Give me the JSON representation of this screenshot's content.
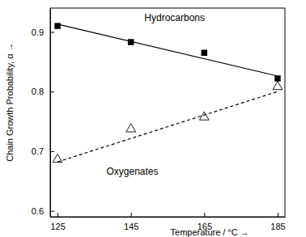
{
  "chart_data": {
    "type": "scatter",
    "x_label": "Temperature / °C →",
    "y_label": "Chain Growth Probability, α →",
    "xlim": [
      123,
      187
    ],
    "xticks": [
      125,
      145,
      165,
      185
    ],
    "ylim": [
      0.59,
      0.94
    ],
    "yticks": [
      0.6,
      0.7,
      0.8,
      0.9
    ],
    "grid": false,
    "series": [
      {
        "name": "Hydrocarbons",
        "type": "scatter",
        "marker": "square",
        "color": "#000000",
        "x": [
          125,
          145,
          165,
          185
        ],
        "values": [
          0.91,
          0.883,
          0.865,
          0.822
        ]
      },
      {
        "name": "Oxygenates",
        "type": "scatter",
        "marker": "triangle-open",
        "color": "#000000",
        "x": [
          125,
          145,
          165,
          185
        ],
        "values": [
          0.686,
          0.737,
          0.757,
          0.808
        ]
      },
      {
        "type": "line",
        "line_style": "solid",
        "color": "#000000",
        "x": [
          125,
          185
        ],
        "values": [
          0.913,
          0.826
        ]
      },
      {
        "type": "line",
        "line_style": "dashed",
        "color": "#000000",
        "x": [
          125,
          185
        ],
        "values": [
          0.682,
          0.8
        ]
      }
    ]
  }
}
